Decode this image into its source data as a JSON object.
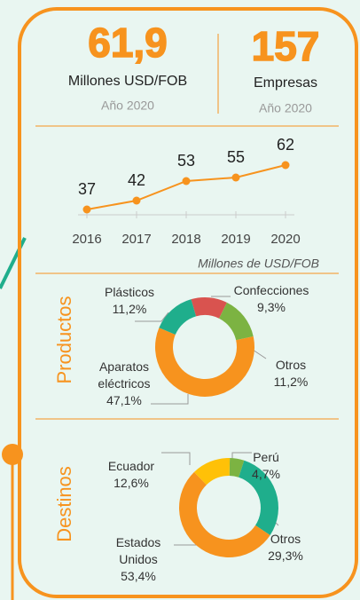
{
  "stats": [
    {
      "value": "61,9",
      "label": "Millones USD/FOB",
      "year": "Año 2020"
    },
    {
      "value": "157",
      "label": "Empresas",
      "year": "Año 2020"
    }
  ],
  "chart_data": [
    {
      "type": "line",
      "categories": [
        "2016",
        "2017",
        "2018",
        "2019",
        "2020"
      ],
      "values": [
        37,
        42,
        53,
        55,
        62
      ],
      "color": "#f7931e",
      "ylim": [
        35,
        70
      ],
      "note": "Millones de USD/FOB"
    },
    {
      "type": "donut",
      "title": "Productos",
      "categories": [
        "Confecciones",
        "Otros",
        "Aparatos eléctricos",
        "Plásticos"
      ],
      "values": [
        9.3,
        11.2,
        47.1,
        11.2
      ],
      "value_labels": [
        "9,3%",
        "11,2%",
        "47,1%",
        "11,2%"
      ],
      "colors": [
        "#d9534f",
        "#7cb342",
        "#f7931e",
        "#1fae8c"
      ]
    },
    {
      "type": "donut",
      "title": "Destinos",
      "categories": [
        "Perú",
        "Otros",
        "Estados Unidos",
        "Ecuador"
      ],
      "values": [
        4.7,
        29.3,
        53.4,
        12.6
      ],
      "value_labels": [
        "4,7%",
        "29,3%",
        "53,4%",
        "12,6%"
      ],
      "colors": [
        "#7cb342",
        "#1fae8c",
        "#f7931e",
        "#ffc107"
      ]
    }
  ]
}
